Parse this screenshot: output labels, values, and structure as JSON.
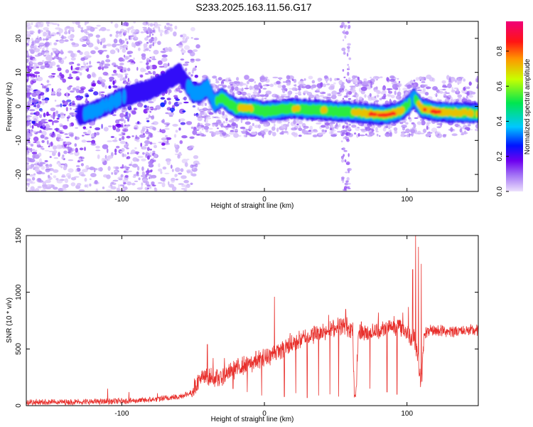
{
  "title": "S233.2025.163.11.56.G17",
  "chart_data": [
    {
      "type": "heatmap",
      "xlabel": "Height of straight line (km)",
      "ylabel": "Frequency (Hz)",
      "xlim": [
        -167,
        150
      ],
      "ylim": [
        -25,
        25
      ],
      "xticks": [
        -100,
        0,
        100
      ],
      "yticks": [
        -20,
        -10,
        0,
        10,
        20
      ],
      "colorbar": {
        "label": "Normalized spectral amplitude",
        "range": [
          0,
          0.97
        ],
        "ticks": [
          "0.0",
          "0.2",
          "0.4",
          "0.6",
          "0.8"
        ],
        "tick_values": [
          0,
          0.2,
          0.4,
          0.6,
          0.8
        ]
      },
      "ridge": [
        {
          "x": -130,
          "y": -2.5,
          "a": 0.25
        },
        {
          "x": -120,
          "y": -1.5,
          "a": 0.3
        },
        {
          "x": -110,
          "y": 0.5,
          "a": 0.3
        },
        {
          "x": -100,
          "y": 2.5,
          "a": 0.28
        },
        {
          "x": -90,
          "y": 4,
          "a": 0.25
        },
        {
          "x": -80,
          "y": 5,
          "a": 0.25
        },
        {
          "x": -70,
          "y": 7,
          "a": 0.22
        },
        {
          "x": -60,
          "y": 10,
          "a": 0.2
        },
        {
          "x": -50,
          "y": 4,
          "a": 0.35
        },
        {
          "x": -45,
          "y": 4,
          "a": 0.4
        },
        {
          "x": -40,
          "y": 5.5,
          "a": 0.45
        },
        {
          "x": -35,
          "y": 1,
          "a": 0.45
        },
        {
          "x": -30,
          "y": 2.5,
          "a": 0.55
        },
        {
          "x": -25,
          "y": 1,
          "a": 0.6
        },
        {
          "x": -20,
          "y": -0.5,
          "a": 0.65
        },
        {
          "x": -10,
          "y": -0.5,
          "a": 0.7
        },
        {
          "x": 0,
          "y": -1.5,
          "a": 0.55
        },
        {
          "x": 10,
          "y": -1,
          "a": 0.6
        },
        {
          "x": 20,
          "y": -0.5,
          "a": 0.65
        },
        {
          "x": 30,
          "y": -1,
          "a": 0.6
        },
        {
          "x": 40,
          "y": -1,
          "a": 0.65
        },
        {
          "x": 50,
          "y": -1.5,
          "a": 0.6
        },
        {
          "x": 55,
          "y": -1.5,
          "a": 0.55
        },
        {
          "x": 65,
          "y": -1.8,
          "a": 0.7
        },
        {
          "x": 75,
          "y": -2.2,
          "a": 0.8
        },
        {
          "x": 85,
          "y": -2.5,
          "a": 0.85
        },
        {
          "x": 95,
          "y": -1.5,
          "a": 0.75
        },
        {
          "x": 100,
          "y": 0,
          "a": 0.5
        },
        {
          "x": 105,
          "y": 2.5,
          "a": 0.45
        },
        {
          "x": 110,
          "y": -0.5,
          "a": 0.8
        },
        {
          "x": 120,
          "y": -1.5,
          "a": 0.85
        },
        {
          "x": 130,
          "y": -1.8,
          "a": 0.7
        },
        {
          "x": 140,
          "y": -1.8,
          "a": 0.7
        },
        {
          "x": 150,
          "y": -2,
          "a": 0.65
        }
      ],
      "vertical_bands": [
        {
          "x": -97,
          "half_width": 3,
          "from": -25,
          "to": 25
        },
        {
          "x": -80,
          "half_width": 3,
          "from": -25,
          "to": 25
        },
        {
          "x": 57,
          "half_width": 3,
          "from": -25,
          "to": 25
        }
      ]
    },
    {
      "type": "line",
      "xlabel": "Height of straight line (km)",
      "ylabel": "SNR (10 * v/v)",
      "xlim": [
        -167,
        150
      ],
      "ylim": [
        0,
        1500
      ],
      "xticks": [
        -100,
        0,
        100
      ],
      "yticks": [
        0,
        500,
        1000,
        1500
      ],
      "color": "#e8302c",
      "envelope": {
        "x": [
          -167,
          -140,
          -115,
          -100,
          -80,
          -60,
          -52,
          -45,
          -38,
          -32,
          -25,
          -20,
          -10,
          0,
          10,
          20,
          30,
          40,
          50,
          55,
          60,
          62,
          63,
          64,
          66,
          70,
          80,
          90,
          95,
          100,
          103,
          105,
          108,
          110,
          112,
          118,
          130,
          150
        ],
        "y": [
          30,
          32,
          35,
          40,
          50,
          80,
          110,
          240,
          250,
          240,
          290,
          330,
          370,
          420,
          480,
          550,
          610,
          650,
          690,
          700,
          690,
          650,
          80,
          80,
          650,
          640,
          660,
          700,
          700,
          640,
          600,
          620,
          400,
          150,
          640,
          660,
          660,
          660
        ]
      },
      "spikes": [
        {
          "x": -110,
          "y": 150
        },
        {
          "x": -95,
          "y": 120
        },
        {
          "x": -75,
          "y": 110
        },
        {
          "x": -40,
          "y": 540
        },
        {
          "x": -36,
          "y": 420
        },
        {
          "x": -28,
          "y": 420
        },
        {
          "x": -6,
          "y": 480
        },
        {
          "x": 7,
          "y": 960
        },
        {
          "x": 18,
          "y": 640
        },
        {
          "x": 30,
          "y": 760
        },
        {
          "x": 45,
          "y": 800
        },
        {
          "x": 57,
          "y": 850
        },
        {
          "x": 68,
          "y": 740
        },
        {
          "x": 80,
          "y": 820
        },
        {
          "x": 91,
          "y": 790
        },
        {
          "x": 97,
          "y": 820
        },
        {
          "x": 101,
          "y": 870
        },
        {
          "x": 104,
          "y": 1200
        },
        {
          "x": 106,
          "y": 1500
        },
        {
          "x": 108,
          "y": 1400
        },
        {
          "x": 110,
          "y": 1250
        }
      ],
      "dropouts": [
        {
          "x": -22,
          "y": 150
        },
        {
          "x": -12,
          "y": 120
        },
        {
          "x": -2,
          "y": 90
        },
        {
          "x": 14,
          "y": 80
        },
        {
          "x": 22,
          "y": 110
        },
        {
          "x": 30,
          "y": 70
        },
        {
          "x": 38,
          "y": 90
        },
        {
          "x": 46,
          "y": 100
        },
        {
          "x": 52,
          "y": 80
        },
        {
          "x": 74,
          "y": 150
        },
        {
          "x": 86,
          "y": 120
        },
        {
          "x": 93,
          "y": 100
        }
      ]
    }
  ]
}
